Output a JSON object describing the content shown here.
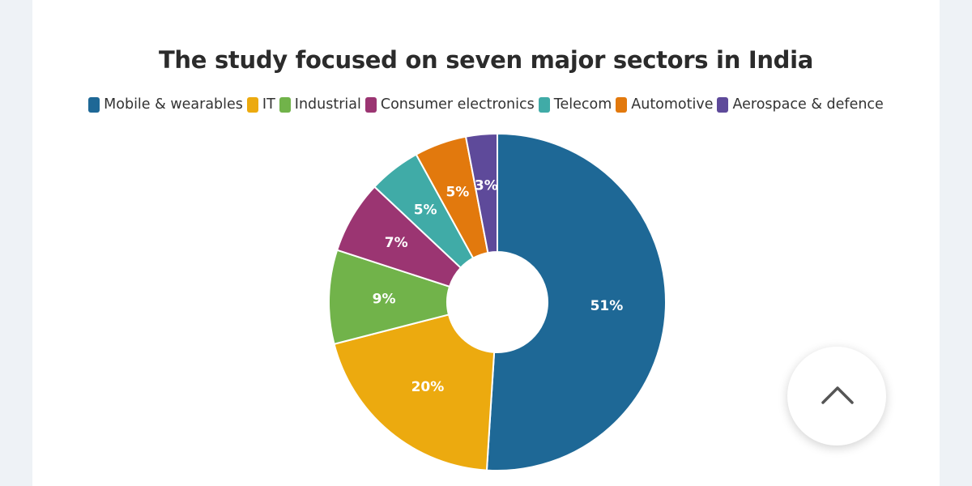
{
  "chart_data": {
    "type": "pie",
    "title": "The study focused on seven major sectors in India",
    "categories": [
      "Mobile & wearables",
      "IT",
      "Industrial",
      "Consumer electronics",
      "Telecom",
      "Automotive",
      "Aerospace & defence"
    ],
    "values": [
      51,
      20,
      9,
      7,
      5,
      5,
      3
    ],
    "value_labels": [
      "51%",
      "20%",
      "9%",
      "7%",
      "5%",
      "5%",
      "3%"
    ],
    "colors": [
      "#1e6896",
      "#ecaa0f",
      "#71b34a",
      "#9b3572",
      "#40aba7",
      "#e2790d",
      "#5e4a9a"
    ],
    "donut": true,
    "legend_position": "top"
  },
  "back_to_top": {
    "icon": "chevron-up-icon"
  }
}
